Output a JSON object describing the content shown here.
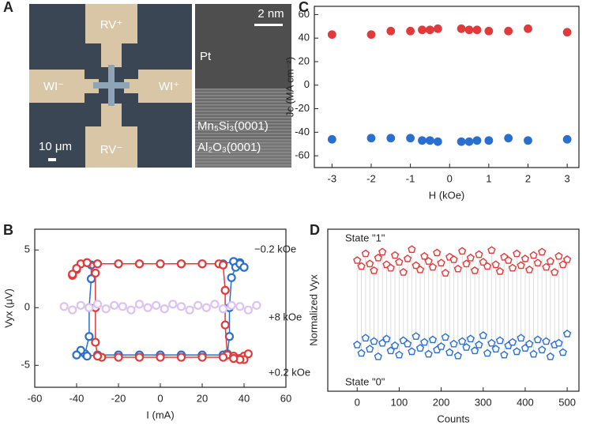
{
  "chart_data": [
    {
      "type": "image",
      "panel": "A",
      "labels": [
        "RV⁺",
        "RV⁻",
        "WI⁻",
        "WI⁺",
        "10 μm",
        "2 nm",
        "Pt",
        "Mn₅Si₃(0001)",
        "Al₂O₃(0001)"
      ]
    },
    {
      "type": "line",
      "panel": "B",
      "x_label": "I (mA)",
      "y_label": "Vyx (μV)",
      "xlim": [
        -60,
        60
      ],
      "ylim": [
        -6.9,
        6.8
      ],
      "xticks": [
        -60,
        -40,
        -20,
        0,
        20,
        40,
        60
      ],
      "yticks": [
        -5,
        0,
        5
      ],
      "series": [
        {
          "name": "−0.2 kOe",
          "color": "#2a6fd0",
          "x": [
            40,
            38,
            35,
            30,
            20,
            10,
            0,
            -10,
            -20,
            -30,
            -33,
            -33,
            -34,
            -34,
            -36,
            -38,
            -40,
            -35,
            -30,
            -20,
            -10,
            0,
            10,
            20,
            30,
            32,
            33,
            33,
            34,
            36,
            38,
            40
          ],
          "values": [
            3.5,
            3.9,
            4.0,
            3.8,
            3.8,
            3.8,
            3.8,
            3.8,
            3.8,
            3.8,
            3.7,
            2.5,
            0,
            -2.5,
            -4.0,
            -3.7,
            -4.1,
            -4.2,
            -4.1,
            -4.1,
            -4.1,
            -4.1,
            -4.1,
            -4.1,
            -4.1,
            -4.0,
            -2.5,
            0,
            2.6,
            3.5,
            3.8,
            3.5
          ]
        },
        {
          "name": "+0.2 kOe",
          "color": "#e03a3a",
          "x": [
            -42,
            -40,
            -38,
            -35,
            -30,
            -20,
            -10,
            0,
            10,
            20,
            28,
            30,
            31,
            31,
            32,
            35,
            38,
            40,
            42,
            40,
            38,
            35,
            30,
            20,
            10,
            0,
            -10,
            -20,
            -28,
            -30,
            -31,
            -31,
            -31,
            -35,
            -40,
            -42
          ],
          "values": [
            2.8,
            3.3,
            3.8,
            3.9,
            3.8,
            3.8,
            3.8,
            3.8,
            3.8,
            3.8,
            3.8,
            3.7,
            1.5,
            -1.5,
            -4.1,
            -4.2,
            -4.4,
            -4.2,
            -4.0,
            -4.5,
            -4.5,
            -4.4,
            -4.3,
            -4.3,
            -4.3,
            -4.3,
            -4.3,
            -4.3,
            -4.3,
            -4.2,
            -3.0,
            0,
            3.0,
            3.9,
            3.4,
            2.9
          ]
        },
        {
          "name": "+8 kOe",
          "color": "#dcc2f2",
          "label_color": "#e060e0",
          "x": [
            -46,
            -42,
            -38,
            -34,
            -30,
            -26,
            -22,
            -18,
            -14,
            -10,
            -6,
            -2,
            2,
            6,
            10,
            14,
            18,
            22,
            26,
            30,
            34,
            38,
            42,
            46
          ],
          "values": [
            0.1,
            -0.2,
            0.2,
            0.0,
            0.3,
            -0.1,
            0.2,
            0.1,
            -0.2,
            0.3,
            0.0,
            0.2,
            -0.1,
            0.3,
            0.1,
            -0.2,
            0.2,
            0.0,
            0.3,
            -0.1,
            0.2,
            0.1,
            -0.2,
            0.2
          ]
        }
      ]
    },
    {
      "type": "scatter",
      "panel": "C",
      "marker": "circle",
      "filled": true,
      "x_label": "H (kOe)",
      "y_label": "Jc (MA cm⁻²)",
      "xlim": [
        -3.45,
        3.3
      ],
      "ylim": [
        -70,
        67
      ],
      "xticks": [
        -3,
        -2,
        -1,
        0,
        1,
        2,
        3
      ],
      "yticks": [
        -60,
        -40,
        -20,
        0,
        20,
        40,
        60
      ],
      "x": [
        -3,
        -2,
        -1.5,
        -1,
        -0.7,
        -0.5,
        -0.3,
        0.3,
        0.5,
        0.7,
        1,
        1.5,
        2,
        3
      ],
      "series": [
        {
          "color": "#e03a3a",
          "values": [
            43,
            43,
            46,
            46,
            47,
            47,
            48,
            48,
            47,
            47,
            46,
            46,
            48,
            45
          ]
        },
        {
          "color": "#2a6fd0",
          "values": [
            -46,
            -45,
            -45,
            -45,
            -47,
            -47,
            -48,
            -48,
            -48,
            -47,
            -47,
            -45,
            -47,
            -46
          ]
        }
      ]
    },
    {
      "type": "scatter",
      "panel": "D",
      "marker": "pentagon",
      "filled": false,
      "connect": true,
      "x_label": "Counts",
      "y_label": "Normalized Vyx",
      "xlim": [
        -70,
        528
      ],
      "ylim": [
        -0.53,
        1.39
      ],
      "xticks": [
        0,
        100,
        200,
        300,
        400,
        500
      ],
      "x": [
        0,
        10,
        20,
        30,
        40,
        50,
        60,
        70,
        80,
        90,
        100,
        110,
        120,
        130,
        140,
        150,
        160,
        170,
        180,
        190,
        200,
        210,
        220,
        230,
        240,
        250,
        260,
        270,
        280,
        290,
        300,
        310,
        320,
        330,
        340,
        350,
        360,
        370,
        380,
        390,
        400,
        410,
        420,
        430,
        440,
        450,
        460,
        470,
        480,
        490,
        500
      ],
      "series": [
        {
          "name": "State \"1\"",
          "color": "#e03a3a",
          "values": [
            1.02,
            0.95,
            1.1,
            0.98,
            0.9,
            1.05,
            1.12,
            0.97,
            0.93,
            1.08,
            1.0,
            0.88,
            1.04,
            1.15,
            0.96,
            0.91,
            1.07,
            1.01,
            0.94,
            1.11,
            0.99,
            0.87,
            1.06,
            1.03,
            0.92,
            1.13,
            0.98,
            1.05,
            0.9,
            1.09,
            1.0,
            0.95,
            1.14,
            0.97,
            0.89,
            1.06,
            1.02,
            0.93,
            1.1,
            0.96,
            1.04,
            0.91,
            1.08,
            0.99,
            1.12,
            0.94,
            1.01,
            0.88,
            1.07,
            0.97,
            1.03
          ]
        },
        {
          "name": "State \"0\"",
          "color": "#2a6fd0",
          "values": [
            0.02,
            -0.08,
            0.1,
            -0.03,
            0.06,
            -0.12,
            0.04,
            0.09,
            -0.05,
            0.01,
            -0.1,
            0.07,
            0.03,
            -0.06,
            0.12,
            -0.02,
            0.05,
            -0.09,
            0.08,
            -0.04,
            0.0,
            0.11,
            -0.07,
            0.03,
            -0.11,
            0.06,
            -0.01,
            0.09,
            -0.05,
            0.02,
            0.13,
            -0.08,
            0.04,
            -0.03,
            0.07,
            -0.1,
            0.01,
            0.05,
            -0.06,
            0.1,
            -0.02,
            0.03,
            -0.09,
            0.08,
            -0.04,
            0.06,
            -0.12,
            0.02,
            0.04,
            -0.07,
            0.15
          ]
        }
      ]
    }
  ]
}
